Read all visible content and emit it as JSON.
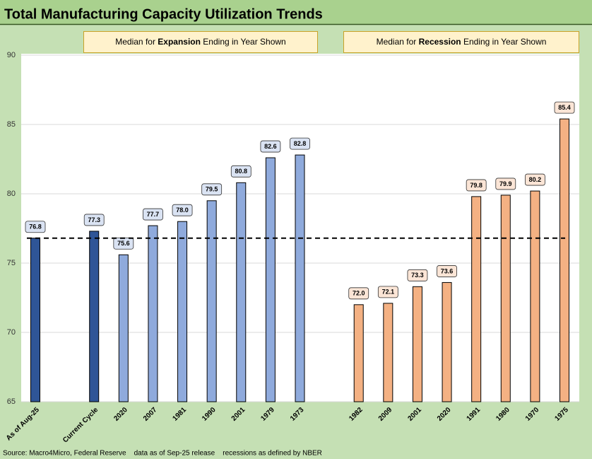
{
  "chart_data": {
    "type": "bar",
    "title": "Total Manufacturing Capacity Utilization Trends",
    "annotations": [
      {
        "before": "Median for ",
        "bold": "Expansion",
        "after": " Ending in Year Shown"
      },
      {
        "before": "Median for ",
        "bold": "Recession",
        "after": " Ending in Year Shown"
      }
    ],
    "categories": [
      "As of Aug-25",
      null,
      "Current Cycle",
      "2020",
      "2007",
      "1981",
      "1990",
      "2001",
      "1979",
      "1973",
      null,
      "1982",
      "2009",
      "2001",
      "2020",
      "1991",
      "1980",
      "1970",
      "1975"
    ],
    "values": [
      76.8,
      null,
      77.3,
      75.6,
      77.7,
      78.0,
      79.5,
      80.8,
      82.6,
      82.8,
      null,
      72.0,
      72.1,
      73.3,
      73.6,
      79.8,
      79.9,
      80.2,
      85.4
    ],
    "value_labels": [
      "76.8",
      null,
      "77.3",
      "75.6",
      "77.7",
      "78.0",
      "79.5",
      "80.8",
      "82.6",
      "82.8",
      null,
      "72.0",
      "72.1",
      "73.3",
      "73.6",
      "79.8",
      "79.9",
      "80.2",
      "85.4"
    ],
    "colors": [
      "#2f5597",
      null,
      "#2f5597",
      "#8faadc",
      "#8faadc",
      "#8faadc",
      "#8faadc",
      "#8faadc",
      "#8faadc",
      "#8faadc",
      null,
      "#f4b183",
      "#f4b183",
      "#f4b183",
      "#f4b183",
      "#f4b183",
      "#f4b183",
      "#f4b183",
      "#f4b183"
    ],
    "ylim": [
      65,
      90
    ],
    "yticks": [
      65,
      70,
      75,
      80,
      85,
      90
    ],
    "grid": true,
    "reference_line": 76.8,
    "source": "Source: Macro4Micro, Federal Reserve    data as of Sep-25 release    recessions as defined by NBER"
  }
}
